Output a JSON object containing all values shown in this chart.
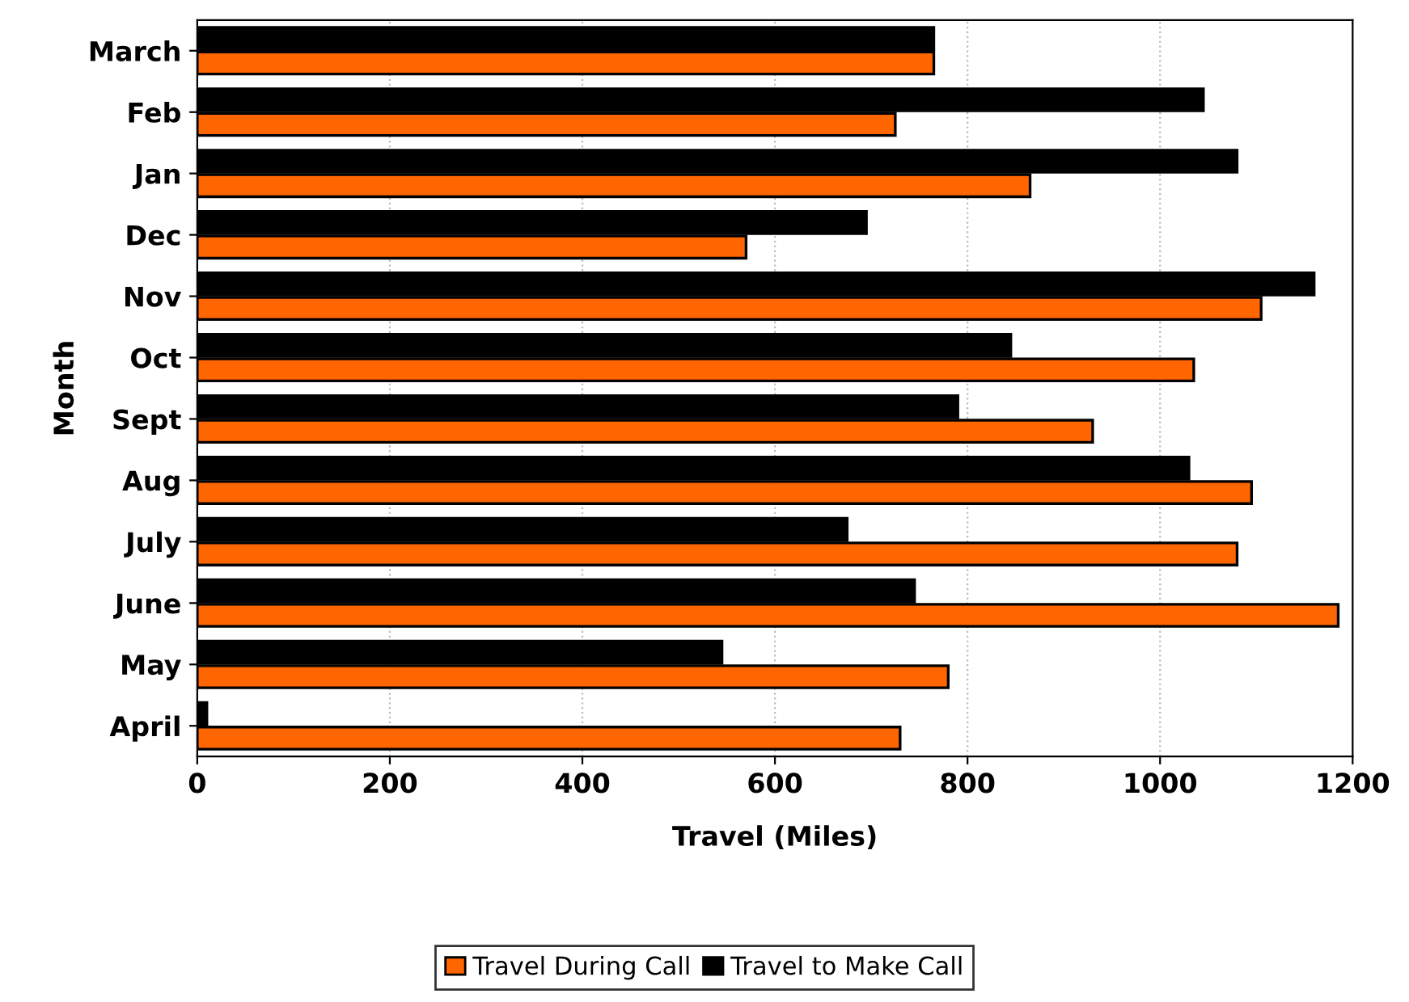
{
  "chart_data": {
    "type": "bar",
    "orientation": "horizontal",
    "xlabel": "Travel (Miles)",
    "ylabel": "Month",
    "categories": [
      "March",
      "Feb",
      "Jan",
      "Dec",
      "Nov",
      "Oct",
      "Sept",
      "Aug",
      "July",
      "June",
      "May",
      "April"
    ],
    "series": [
      {
        "name": "Travel During Call",
        "color": "#ff6600",
        "values": [
          765,
          725,
          865,
          570,
          1105,
          1035,
          930,
          1095,
          1080,
          1185,
          780,
          730
        ]
      },
      {
        "name": "Travel to Make Call",
        "color": "#000000",
        "values": [
          765,
          1045,
          1080,
          695,
          1160,
          845,
          790,
          1030,
          675,
          745,
          545,
          10
        ]
      }
    ],
    "xlim": [
      0,
      1200
    ],
    "xticks": [
      0,
      200,
      400,
      600,
      800,
      1000,
      1200
    ],
    "grid": "x",
    "legend": "bottom"
  }
}
